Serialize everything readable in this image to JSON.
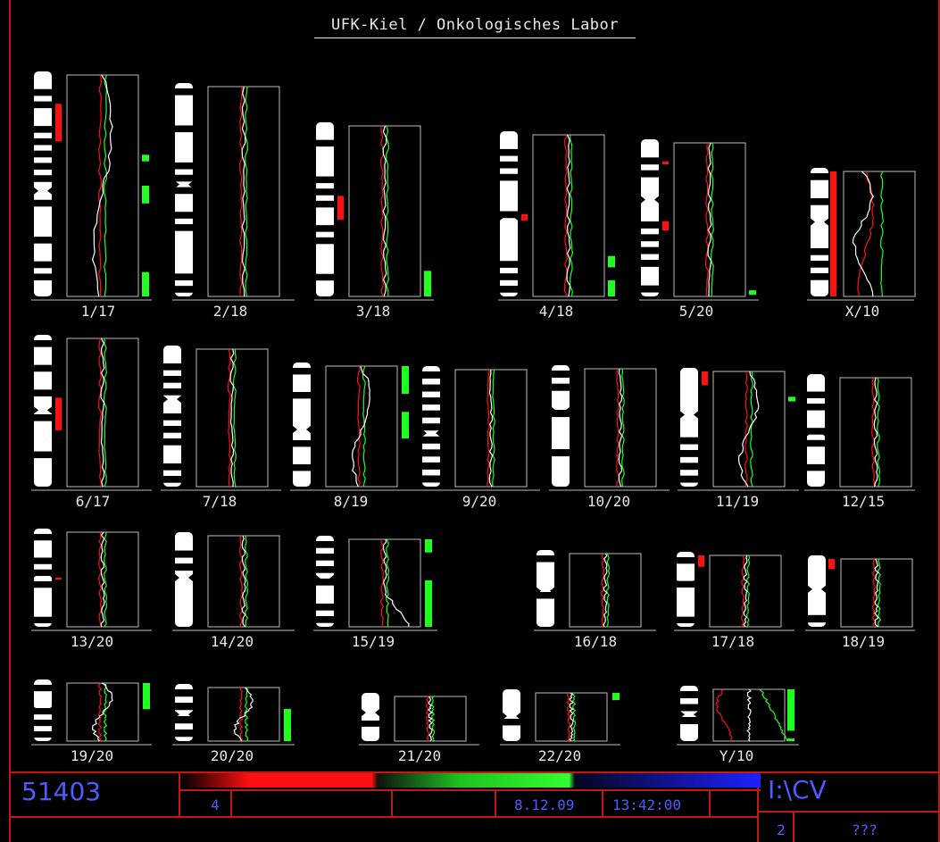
{
  "header": {
    "title": "UFK-Kiel / Onkologisches Labor"
  },
  "colors": {
    "gain": "#ff1010",
    "loss": "#20ff20",
    "profile": "#ffffff",
    "frame": "#c01818",
    "status_text": "#4d5cff"
  },
  "chromosomes": [
    {
      "label": "1/17",
      "red": [
        [
          0.13,
          0.3
        ]
      ],
      "green": [
        [
          0.36,
          0.39
        ],
        [
          0.5,
          0.58
        ],
        [
          0.89,
          1.0
        ]
      ],
      "wave": 1
    },
    {
      "label": "2/18",
      "red": [],
      "green": [],
      "wave": 0
    },
    {
      "label": "3/18",
      "red": [
        [
          0.41,
          0.55
        ]
      ],
      "green": [
        [
          0.85,
          1.0
        ]
      ],
      "wave": 0
    },
    {
      "label": "4/18",
      "red": [
        [
          0.49,
          0.53
        ]
      ],
      "green": [
        [
          0.75,
          0.82
        ],
        [
          0.9,
          1.0
        ]
      ],
      "wave": 0
    },
    {
      "label": "5/20",
      "red": [
        [
          0.12,
          0.14
        ],
        [
          0.51,
          0.57
        ]
      ],
      "green": [
        [
          0.96,
          0.99
        ]
      ],
      "wave": 0
    },
    {
      "label": "X/10",
      "red": [
        [
          0.0,
          1.0
        ]
      ],
      "green": [],
      "wave": 2
    },
    {
      "label": "6/17",
      "red": [
        [
          0.4,
          0.62
        ]
      ],
      "green": [],
      "wave": 0
    },
    {
      "label": "7/18",
      "red": [],
      "green": [],
      "wave": 0
    },
    {
      "label": "8/19",
      "red": [],
      "green": [
        [
          0.0,
          0.23
        ],
        [
          0.38,
          0.6
        ]
      ],
      "wave": 1
    },
    {
      "label": "9/20",
      "red": [],
      "green": [],
      "wave": 0
    },
    {
      "label": "10/20",
      "red": [],
      "green": [],
      "wave": 0
    },
    {
      "label": "11/19",
      "red": [
        [
          0.0,
          0.12
        ]
      ],
      "green": [
        [
          0.22,
          0.26
        ]
      ],
      "wave": 1
    },
    {
      "label": "12/15",
      "red": [],
      "green": [],
      "wave": 0
    },
    {
      "label": "13/20",
      "red": [
        [
          0.48,
          0.5
        ]
      ],
      "green": [],
      "wave": 0
    },
    {
      "label": "14/20",
      "red": [],
      "green": [],
      "wave": 0
    },
    {
      "label": "15/19",
      "red": [],
      "green": [
        [
          0.0,
          0.15
        ],
        [
          0.47,
          1.0
        ]
      ],
      "wave": 3
    },
    {
      "label": "16/18",
      "red": [],
      "green": [],
      "wave": 0
    },
    {
      "label": "17/18",
      "red": [
        [
          0.0,
          0.16
        ]
      ],
      "green": [],
      "wave": 0
    },
    {
      "label": "18/19",
      "red": [
        [
          0.0,
          0.15
        ]
      ],
      "green": [],
      "wave": 0
    },
    {
      "label": "19/20",
      "red": [],
      "green": [
        [
          0.0,
          0.45
        ]
      ],
      "wave": 1
    },
    {
      "label": "20/20",
      "red": [],
      "green": [
        [
          0.4,
          1.0
        ]
      ],
      "wave": 1
    },
    {
      "label": "21/20",
      "red": [],
      "green": [],
      "wave": 0
    },
    {
      "label": "22/20",
      "red": [],
      "green": [
        [
          0.0,
          0.15
        ]
      ],
      "wave": 0
    },
    {
      "label": "Y/10",
      "red": [],
      "green": [
        [
          0.0,
          0.8
        ],
        [
          0.95,
          1.0
        ]
      ],
      "wave": 4
    }
  ],
  "status": {
    "case_id": "51403",
    "count": "4",
    "date": "8.12.09",
    "time": "13:42:00",
    "drive": "I:\\CV",
    "page": "2",
    "unknown": "???"
  }
}
